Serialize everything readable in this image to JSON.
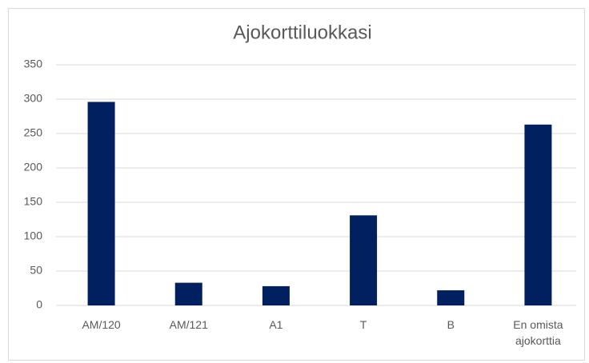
{
  "chart_data": {
    "type": "bar",
    "title": "Ajokorttiluokkasi",
    "categories": [
      "AM/120",
      "AM/121",
      "A1",
      "T",
      "B",
      "En omista ajokorttia"
    ],
    "values": [
      296,
      33,
      28,
      131,
      22,
      263
    ],
    "color": "#002060",
    "ylim": [
      0,
      350
    ],
    "yticks": [
      0,
      50,
      100,
      150,
      200,
      250,
      300,
      350
    ],
    "grid": true
  }
}
